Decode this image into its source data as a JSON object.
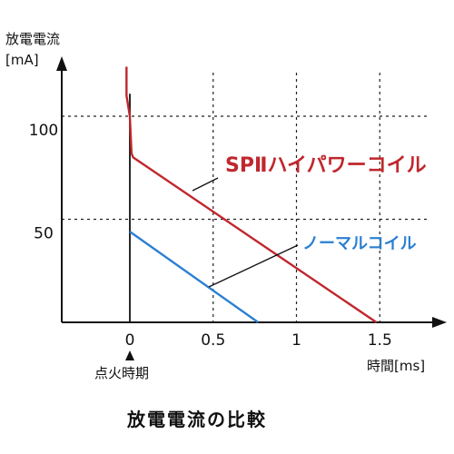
{
  "chart_data": {
    "type": "line",
    "title": "放電電流の比較",
    "ylabel_line1": "放電電流",
    "ylabel_line2": "[mA]",
    "xlabel": "時間[ms]",
    "xlim": [
      -0.5,
      1.8
    ],
    "ylim": [
      0,
      135
    ],
    "x_ticks": [
      0,
      0.5,
      1,
      1.5
    ],
    "x_tick_labels": [
      "0",
      "0.5",
      "1",
      "1.5"
    ],
    "y_ticks": [
      50,
      100
    ],
    "y_tick_labels": [
      "50",
      "100"
    ],
    "grid": "dashed",
    "annotation_ignition": "点火時期",
    "series": [
      {
        "name": "SPⅡハイパワーコイル",
        "color": "#c0272d",
        "x": [
          -0.02,
          -0.02,
          0.0,
          0.01,
          0.02,
          1.48
        ],
        "y": [
          124,
          110,
          100,
          82,
          80,
          0
        ]
      },
      {
        "name": "ノーマルコイル",
        "color": "#2a7fd2",
        "x": [
          0.0,
          0.77
        ],
        "y": [
          44,
          0
        ]
      }
    ]
  }
}
